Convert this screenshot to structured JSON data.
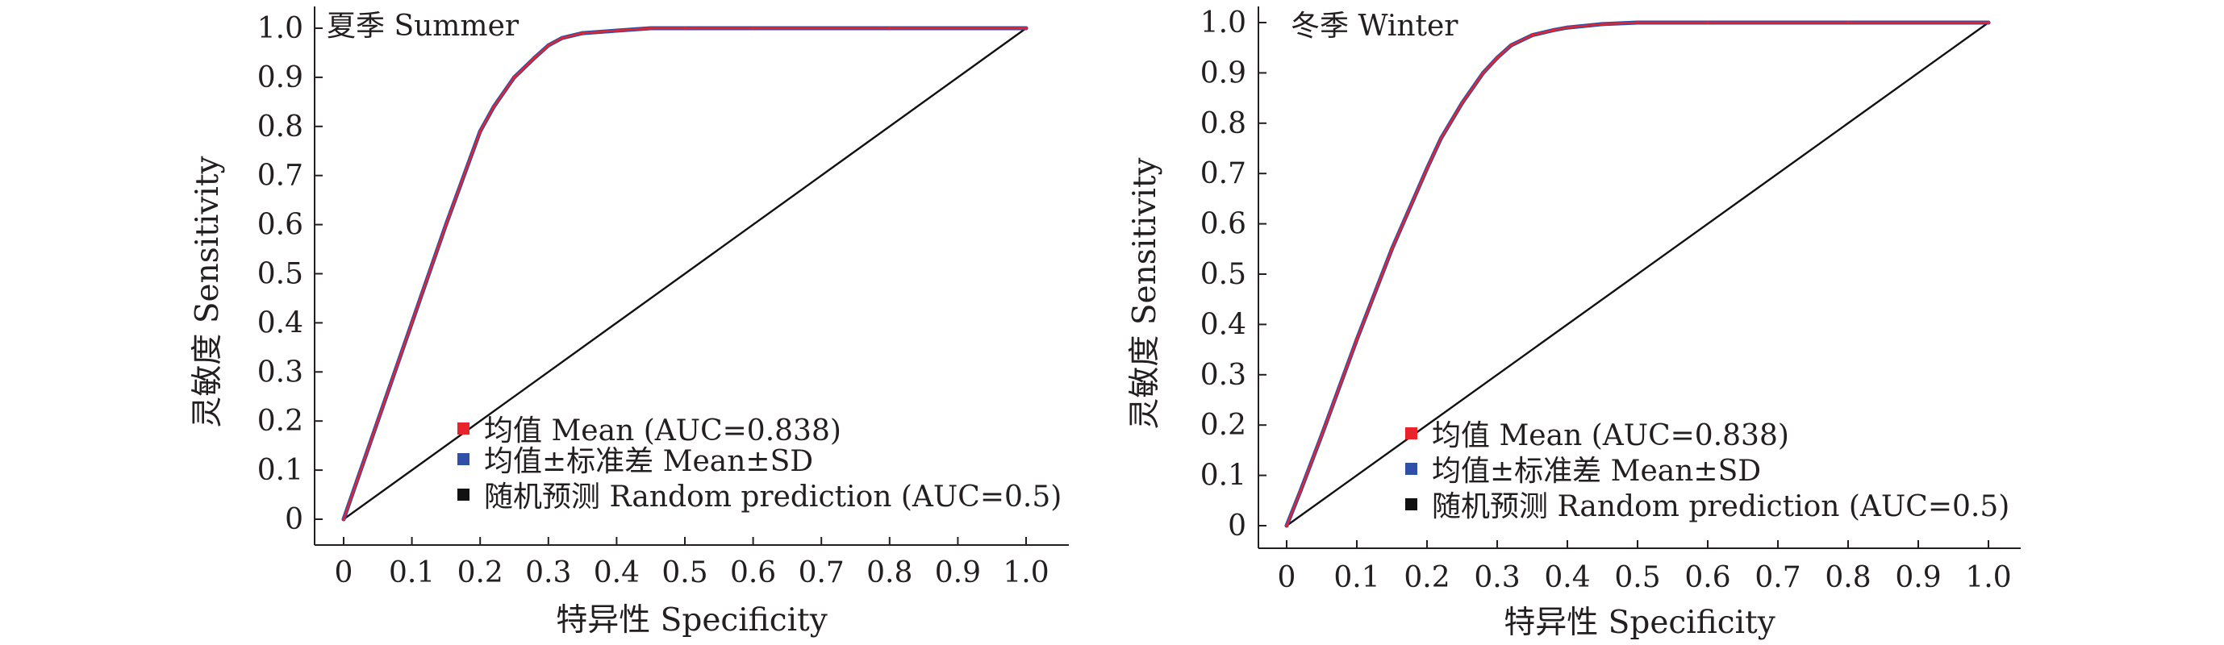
{
  "colors": {
    "mean": "#e8232b",
    "sd": "#2f4fa8",
    "random": "#111111",
    "axis": "#231f20"
  },
  "chart_data": [
    {
      "type": "line",
      "title": "夏季 Summer",
      "xlabel": "特异性 Specificity",
      "ylabel": "灵敏度 Sensitivity",
      "xlim": [
        0,
        1.0
      ],
      "ylim": [
        0,
        1.0
      ],
      "x_tick_labels": [
        "0",
        "0.1",
        "0.2",
        "0.3",
        "0.4",
        "0.5",
        "0.6",
        "0.7",
        "0.8",
        "0.9",
        "1.0"
      ],
      "y_tick_labels": [
        "0",
        "0.1",
        "0.2",
        "0.3",
        "0.4",
        "0.5",
        "0.6",
        "0.7",
        "0.8",
        "0.9",
        "1.0"
      ],
      "legend_position": "bottom-right",
      "series": [
        {
          "name": "均值 Mean (AUC=0.838)",
          "x": [
            0,
            0.02,
            0.05,
            0.1,
            0.15,
            0.2,
            0.22,
            0.25,
            0.28,
            0.3,
            0.32,
            0.35,
            0.4,
            0.45,
            0.5,
            0.6,
            0.8,
            1.0
          ],
          "y": [
            0,
            0.08,
            0.2,
            0.4,
            0.6,
            0.79,
            0.84,
            0.9,
            0.94,
            0.965,
            0.98,
            0.99,
            0.995,
            1.0,
            1.0,
            1.0,
            1.0,
            1.0
          ]
        },
        {
          "name": "均值±标准差 Mean±SD",
          "x": [
            0,
            0.02,
            0.05,
            0.1,
            0.15,
            0.2,
            0.22,
            0.25,
            0.28,
            0.3,
            0.32,
            0.35,
            0.4,
            0.45,
            0.5,
            0.6,
            0.8,
            1.0
          ],
          "y": [
            0,
            0.08,
            0.2,
            0.4,
            0.6,
            0.79,
            0.84,
            0.9,
            0.94,
            0.965,
            0.98,
            0.99,
            0.995,
            1.0,
            1.0,
            1.0,
            1.0,
            1.0
          ]
        },
        {
          "name": "随机预测 Random prediction (AUC=0.5)",
          "x": [
            0,
            1.0
          ],
          "y": [
            0,
            1.0
          ]
        }
      ]
    },
    {
      "type": "line",
      "title": "冬季 Winter",
      "xlabel": "特异性 Specificity",
      "ylabel": "灵敏度 Sensitivity",
      "xlim": [
        0,
        1.0
      ],
      "ylim": [
        0,
        1.0
      ],
      "x_tick_labels": [
        "0",
        "0.1",
        "0.2",
        "0.3",
        "0.4",
        "0.5",
        "0.6",
        "0.7",
        "0.8",
        "0.9",
        "1.0"
      ],
      "y_tick_labels": [
        "0",
        "0.1",
        "0.2",
        "0.3",
        "0.4",
        "0.5",
        "0.6",
        "0.7",
        "0.8",
        "0.9",
        "1.0"
      ],
      "legend_position": "bottom-right",
      "series": [
        {
          "name": "均值 Mean (AUC=0.838)",
          "x": [
            0,
            0.02,
            0.05,
            0.1,
            0.15,
            0.2,
            0.22,
            0.25,
            0.28,
            0.3,
            0.32,
            0.35,
            0.38,
            0.4,
            0.45,
            0.5,
            0.6,
            0.8,
            1.0
          ],
          "y": [
            0,
            0.07,
            0.18,
            0.37,
            0.55,
            0.71,
            0.77,
            0.84,
            0.9,
            0.93,
            0.955,
            0.975,
            0.985,
            0.99,
            0.997,
            1.0,
            1.0,
            1.0,
            1.0
          ]
        },
        {
          "name": "均值±标准差 Mean±SD",
          "x": [
            0,
            0.02,
            0.05,
            0.1,
            0.15,
            0.2,
            0.22,
            0.25,
            0.28,
            0.3,
            0.32,
            0.35,
            0.38,
            0.4,
            0.45,
            0.5,
            0.6,
            0.8,
            1.0
          ],
          "y": [
            0,
            0.07,
            0.18,
            0.37,
            0.55,
            0.71,
            0.77,
            0.84,
            0.9,
            0.93,
            0.955,
            0.975,
            0.985,
            0.99,
            0.997,
            1.0,
            1.0,
            1.0,
            1.0
          ]
        },
        {
          "name": "随机预测 Random prediction (AUC=0.5)",
          "x": [
            0,
            1.0
          ],
          "y": [
            0,
            1.0
          ]
        }
      ]
    }
  ]
}
